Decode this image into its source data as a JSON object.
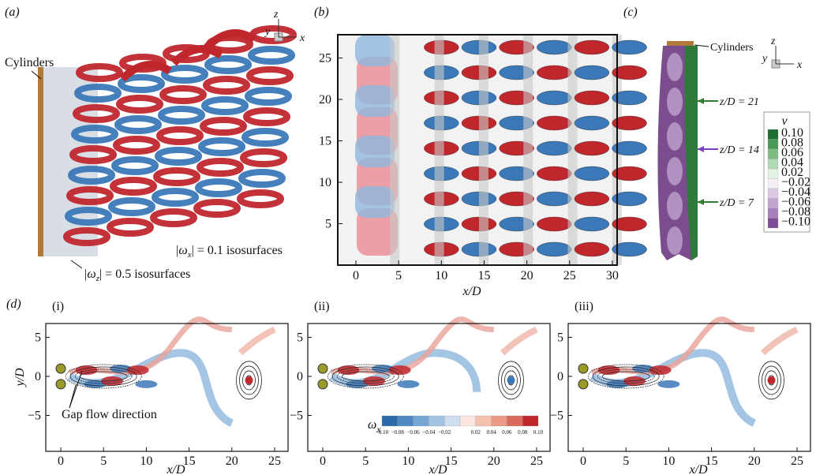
{
  "panels": {
    "a": {
      "label": "(a)",
      "cylinders": "Cylinders",
      "axes": [
        "z",
        "y",
        "x"
      ],
      "iso_x": {
        "prefix": "|ω",
        "sub": "x",
        "suffix": "| = 0.1 isosurfaces"
      },
      "iso_z": {
        "prefix": "|ω",
        "sub": "z",
        "suffix": "| = 0.5 isosurfaces"
      }
    },
    "b": {
      "label": "(b)",
      "xlabel": "x/D",
      "xticks": [
        "0",
        "5",
        "10",
        "15",
        "20",
        "25",
        "30"
      ],
      "yticks": [
        "5",
        "10",
        "15",
        "20",
        "25"
      ]
    },
    "c": {
      "label": "(c)",
      "cylinders": "Cylinders",
      "axes": [
        "z",
        "y",
        "x"
      ],
      "colorbar_title": "v",
      "colorbar_ticks": [
        "0.10",
        "0.08",
        "0.06",
        "0.04",
        "0.02",
        "−0.02",
        "−0.04",
        "−0.06",
        "−0.08",
        "−0.10"
      ],
      "planes": [
        "z/D = 21",
        "z/D = 14",
        "z/D = 7"
      ]
    },
    "d": {
      "label": "(d)",
      "subpanels": [
        "(i)",
        "(ii)",
        "(iii)"
      ],
      "xlabel": "x/D",
      "ylabel": "y/D",
      "xticks": [
        "0",
        "5",
        "10",
        "15",
        "20",
        "25"
      ],
      "yticks": [
        "5",
        "0",
        "−5"
      ],
      "gap_flow": "Gap flow direction",
      "colorbar": {
        "symbol": "ω",
        "sub": "x",
        "ticks": [
          "−0.10",
          "−0.08",
          "−0.06",
          "−0.04",
          "−0.02",
          "0.02",
          "0.04",
          "0.06",
          "0.08",
          "0.10"
        ]
      }
    }
  }
}
